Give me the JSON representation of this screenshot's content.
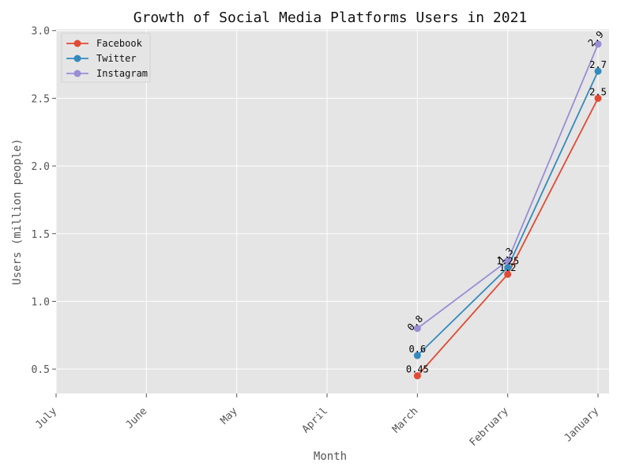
{
  "chart_data": {
    "type": "line",
    "title": "Growth of Social Media Platforms Users in 2021",
    "xlabel": "Month",
    "ylabel": "Users (million people)",
    "categories": [
      "July",
      "June",
      "May",
      "April",
      "March",
      "February",
      "January"
    ],
    "ylim": [
      0.32,
      3.01
    ],
    "yticks": [
      "0.5",
      "1.0",
      "1.5",
      "2.0",
      "2.5",
      "3.0"
    ],
    "grid": true,
    "legend_position": "top-left",
    "series": [
      {
        "name": "Facebook",
        "color": "#E24A33",
        "x": [
          "March",
          "February",
          "January"
        ],
        "values": [
          0.45,
          1.2,
          2.5
        ],
        "labels": [
          "0.45",
          "1.2",
          "2.5"
        ]
      },
      {
        "name": "Twitter",
        "color": "#348ABD",
        "x": [
          "March",
          "February",
          "January"
        ],
        "values": [
          0.6,
          1.25,
          2.7
        ],
        "labels": [
          "0.6",
          "1.25",
          "2.7"
        ]
      },
      {
        "name": "Instagram",
        "color": "#988ED5",
        "x": [
          "March",
          "February",
          "January"
        ],
        "values": [
          0.8,
          1.3,
          2.9
        ],
        "labels": [
          "0.8",
          "1.3",
          "2.9"
        ]
      }
    ]
  }
}
